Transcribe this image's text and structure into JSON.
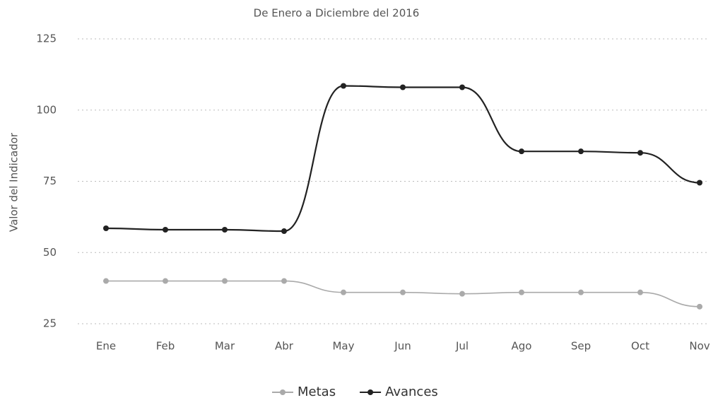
{
  "chart_data": {
    "type": "line",
    "title": "De Enero a Diciembre del 2016",
    "y_label": "Valor del Indicador",
    "categories": [
      "Ene",
      "Feb",
      "Mar",
      "Abr",
      "May",
      "Jun",
      "Jul",
      "Ago",
      "Sep",
      "Oct",
      "Nov"
    ],
    "series": [
      {
        "name": "Metas",
        "color": "#aaaaaa",
        "values": [
          40,
          40,
          40,
          40,
          36,
          36,
          35.5,
          36,
          36,
          36,
          31
        ]
      },
      {
        "name": "Avances",
        "color": "#222222",
        "values": [
          58.5,
          58,
          58,
          57.5,
          108.5,
          108,
          108,
          85.5,
          85.5,
          85,
          74.5
        ]
      }
    ],
    "ylim": [
      25,
      125
    ],
    "yticks": [
      25,
      50,
      75,
      100,
      125
    ],
    "grid": true,
    "legend": "bottom"
  }
}
